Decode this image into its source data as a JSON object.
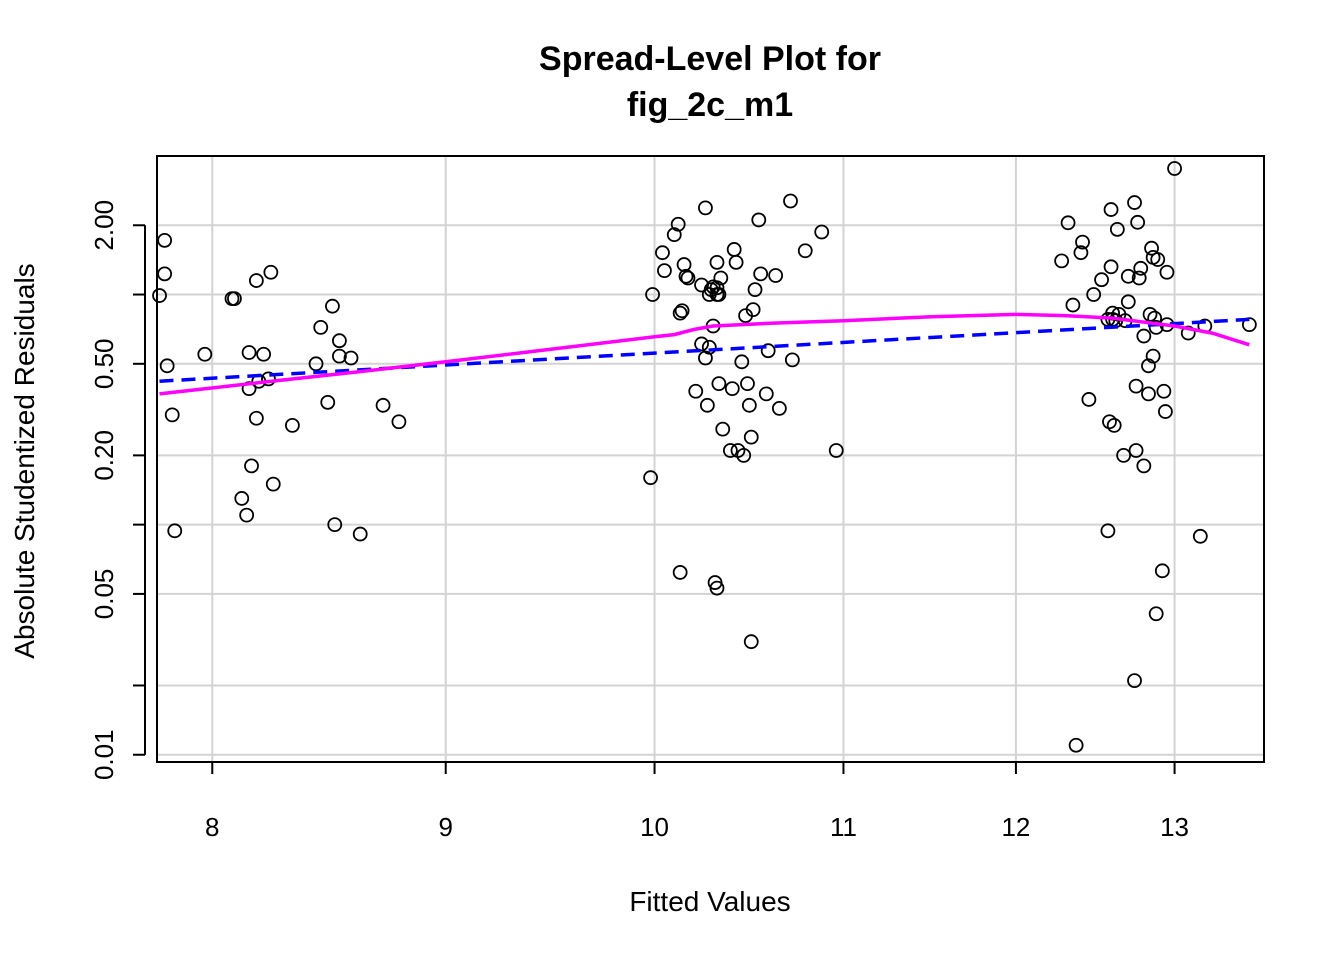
{
  "chart_data": {
    "type": "scatter",
    "title_line1": "Spread-Level Plot for",
    "title_line2": "fig_2c_m1",
    "xlabel": "Fitted Values",
    "ylabel": "Absolute Studentized Residuals",
    "x_scale": "log",
    "y_scale": "log",
    "xlim": [
      7.78,
      13.6
    ],
    "ylim": [
      0.0093,
      4.0
    ],
    "grid": true,
    "x_ticks": [
      8,
      9,
      10,
      11,
      12,
      13
    ],
    "x_tick_labels": [
      "8",
      "9",
      "10",
      "11",
      "12",
      "13"
    ],
    "y_ticks": [
      0.01,
      0.02,
      0.05,
      0.1,
      0.2,
      0.5,
      1,
      2
    ],
    "y_tick_labels": [
      "0.01",
      "",
      "0.05",
      "",
      "0.20",
      "0.50",
      "",
      "2.00"
    ],
    "colors": {
      "points": "#000000",
      "fit_line": "#0000ff",
      "smooth_line": "#ff00ff",
      "grid": "#d3d3d3"
    },
    "points": [
      [
        7.79,
        0.99
      ],
      [
        7.81,
        1.23
      ],
      [
        7.81,
        1.72
      ],
      [
        7.82,
        0.49
      ],
      [
        7.84,
        0.3
      ],
      [
        7.85,
        0.094
      ],
      [
        7.97,
        0.55
      ],
      [
        8.08,
        0.96
      ],
      [
        8.09,
        0.96
      ],
      [
        8.12,
        0.13
      ],
      [
        8.14,
        0.11
      ],
      [
        8.15,
        0.56
      ],
      [
        8.15,
        0.39
      ],
      [
        8.16,
        0.18
      ],
      [
        8.18,
        1.15
      ],
      [
        8.18,
        0.29
      ],
      [
        8.19,
        0.42
      ],
      [
        8.21,
        0.55
      ],
      [
        8.23,
        0.43
      ],
      [
        8.24,
        1.25
      ],
      [
        8.25,
        0.15
      ],
      [
        8.33,
        0.27
      ],
      [
        8.43,
        0.5
      ],
      [
        8.45,
        0.72
      ],
      [
        8.48,
        0.34
      ],
      [
        8.5,
        0.89
      ],
      [
        8.51,
        0.1
      ],
      [
        8.53,
        0.63
      ],
      [
        8.53,
        0.54
      ],
      [
        8.58,
        0.53
      ],
      [
        8.62,
        0.091
      ],
      [
        8.72,
        0.33
      ],
      [
        8.79,
        0.28
      ],
      [
        9.98,
        0.16
      ],
      [
        9.99,
        1.0
      ],
      [
        10.04,
        1.52
      ],
      [
        10.05,
        1.27
      ],
      [
        10.1,
        1.82
      ],
      [
        10.12,
        2.02
      ],
      [
        10.13,
        0.83
      ],
      [
        10.13,
        0.062
      ],
      [
        10.14,
        0.85
      ],
      [
        10.15,
        1.35
      ],
      [
        10.16,
        1.2
      ],
      [
        10.17,
        1.18
      ],
      [
        10.21,
        0.38
      ],
      [
        10.24,
        1.1
      ],
      [
        10.24,
        0.61
      ],
      [
        10.26,
        2.38
      ],
      [
        10.26,
        0.53
      ],
      [
        10.27,
        0.33
      ],
      [
        10.28,
        0.59
      ],
      [
        10.28,
        1.0
      ],
      [
        10.29,
        1.05
      ],
      [
        10.3,
        0.73
      ],
      [
        10.3,
        1.08
      ],
      [
        10.31,
        0.056
      ],
      [
        10.32,
        1.0
      ],
      [
        10.32,
        1.07
      ],
      [
        10.32,
        1.38
      ],
      [
        10.32,
        0.053
      ],
      [
        10.33,
        0.41
      ],
      [
        10.33,
        1.0
      ],
      [
        10.34,
        1.18
      ],
      [
        10.35,
        0.26
      ],
      [
        10.39,
        0.21
      ],
      [
        10.4,
        0.39
      ],
      [
        10.41,
        1.57
      ],
      [
        10.42,
        1.38
      ],
      [
        10.43,
        0.21
      ],
      [
        10.45,
        0.51
      ],
      [
        10.46,
        0.2
      ],
      [
        10.47,
        0.81
      ],
      [
        10.48,
        0.41
      ],
      [
        10.49,
        0.33
      ],
      [
        10.5,
        0.24
      ],
      [
        10.5,
        0.031
      ],
      [
        10.51,
        0.86
      ],
      [
        10.52,
        1.05
      ],
      [
        10.54,
        2.11
      ],
      [
        10.55,
        1.23
      ],
      [
        10.58,
        0.37
      ],
      [
        10.59,
        0.57
      ],
      [
        10.63,
        1.21
      ],
      [
        10.65,
        0.32
      ],
      [
        10.71,
        2.55
      ],
      [
        10.72,
        0.52
      ],
      [
        10.79,
        1.55
      ],
      [
        10.88,
        1.87
      ],
      [
        10.96,
        0.21
      ],
      [
        12.28,
        1.4
      ],
      [
        12.32,
        2.05
      ],
      [
        12.35,
        0.9
      ],
      [
        12.37,
        0.011
      ],
      [
        12.4,
        1.52
      ],
      [
        12.41,
        1.69
      ],
      [
        12.45,
        0.35
      ],
      [
        12.48,
        1.0
      ],
      [
        12.53,
        1.16
      ],
      [
        12.57,
        0.094
      ],
      [
        12.57,
        0.78
      ],
      [
        12.58,
        0.28
      ],
      [
        12.59,
        2.34
      ],
      [
        12.59,
        1.32
      ],
      [
        12.6,
        0.83
      ],
      [
        12.6,
        0.78
      ],
      [
        12.61,
        0.27
      ],
      [
        12.62,
        0.77
      ],
      [
        12.63,
        1.92
      ],
      [
        12.64,
        0.82
      ],
      [
        12.67,
        0.2
      ],
      [
        12.68,
        0.77
      ],
      [
        12.7,
        0.93
      ],
      [
        12.7,
        1.2
      ],
      [
        12.74,
        2.51
      ],
      [
        12.74,
        0.021
      ],
      [
        12.75,
        0.4
      ],
      [
        12.75,
        0.21
      ],
      [
        12.76,
        2.06
      ],
      [
        12.77,
        1.18
      ],
      [
        12.78,
        1.3
      ],
      [
        12.8,
        0.18
      ],
      [
        12.8,
        0.66
      ],
      [
        12.83,
        0.37
      ],
      [
        12.83,
        0.49
      ],
      [
        12.84,
        0.82
      ],
      [
        12.85,
        1.59
      ],
      [
        12.86,
        0.54
      ],
      [
        12.86,
        1.45
      ],
      [
        12.87,
        0.79
      ],
      [
        12.88,
        0.72
      ],
      [
        12.88,
        0.041
      ],
      [
        12.89,
        1.42
      ],
      [
        12.92,
        0.063
      ],
      [
        12.93,
        0.38
      ],
      [
        12.94,
        0.31
      ],
      [
        12.95,
        1.25
      ],
      [
        12.95,
        0.74
      ],
      [
        13.0,
        3.53
      ],
      [
        13.09,
        0.68
      ],
      [
        13.17,
        0.089
      ],
      [
        13.2,
        0.73
      ],
      [
        13.5,
        0.74
      ]
    ],
    "fit_line": [
      [
        7.79,
        0.42
      ],
      [
        13.5,
        0.78
      ]
    ],
    "smooth_line": [
      [
        7.79,
        0.37
      ],
      [
        8.2,
        0.415
      ],
      [
        8.6,
        0.46
      ],
      [
        9.0,
        0.51
      ],
      [
        9.5,
        0.58
      ],
      [
        10.0,
        0.655
      ],
      [
        10.1,
        0.67
      ],
      [
        10.2,
        0.705
      ],
      [
        10.3,
        0.73
      ],
      [
        10.6,
        0.75
      ],
      [
        11.0,
        0.77
      ],
      [
        11.5,
        0.8
      ],
      [
        12.0,
        0.82
      ],
      [
        12.3,
        0.81
      ],
      [
        12.6,
        0.79
      ],
      [
        13.0,
        0.73
      ],
      [
        13.25,
        0.68
      ],
      [
        13.5,
        0.605
      ]
    ]
  }
}
